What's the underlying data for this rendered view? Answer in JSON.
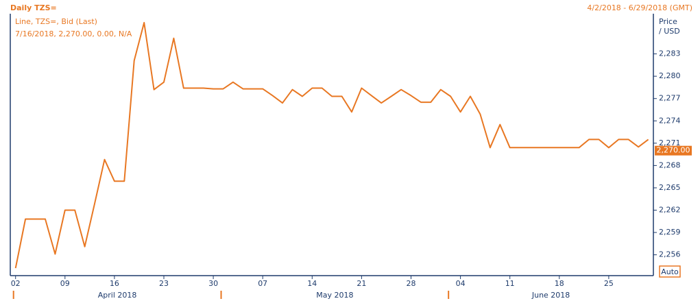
{
  "chart_data": {
    "type": "line",
    "title": "Daily TZS=",
    "date_range": "4/2/2018 - 6/29/2018 (GMT)",
    "series_description": "Line, TZS=, Bid (Last)",
    "last_quote": "7/16/2018, 2,270.00, 0.00, N/A",
    "y_label": [
      "Price",
      "/ USD"
    ],
    "scale_mode": "Auto",
    "current_price": {
      "value": 2270,
      "label": "2,270.00"
    },
    "categories": [
      "2018-04-02",
      "2018-04-03",
      "2018-04-04",
      "2018-04-05",
      "2018-04-06",
      "2018-04-09",
      "2018-04-10",
      "2018-04-11",
      "2018-04-12",
      "2018-04-13",
      "2018-04-16",
      "2018-04-17",
      "2018-04-18",
      "2018-04-19",
      "2018-04-20",
      "2018-04-23",
      "2018-04-24",
      "2018-04-25",
      "2018-04-26",
      "2018-04-27",
      "2018-04-30",
      "2018-05-01",
      "2018-05-02",
      "2018-05-03",
      "2018-05-04",
      "2018-05-07",
      "2018-05-08",
      "2018-05-09",
      "2018-05-10",
      "2018-05-11",
      "2018-05-14",
      "2018-05-15",
      "2018-05-16",
      "2018-05-17",
      "2018-05-18",
      "2018-05-21",
      "2018-05-22",
      "2018-05-23",
      "2018-05-24",
      "2018-05-25",
      "2018-05-28",
      "2018-05-29",
      "2018-05-30",
      "2018-05-31",
      "2018-06-01",
      "2018-06-04",
      "2018-06-05",
      "2018-06-06",
      "2018-06-07",
      "2018-06-08",
      "2018-06-11",
      "2018-06-12",
      "2018-06-13",
      "2018-06-14",
      "2018-06-15",
      "2018-06-18",
      "2018-06-19",
      "2018-06-20",
      "2018-06-21",
      "2018-06-22",
      "2018-06-25",
      "2018-06-26",
      "2018-06-27",
      "2018-06-28",
      "2018-06-29"
    ],
    "series": [
      {
        "name": "TZS=",
        "color": "#e87722",
        "values": [
          2254.2,
          2260.8,
          2260.8,
          2260.8,
          2256.1,
          2262.0,
          2262.0,
          2257.1,
          2262.9,
          2268.8,
          2265.9,
          2265.9,
          2282.1,
          2287.2,
          2278.2,
          2279.2,
          2285.1,
          2278.4,
          2278.4,
          2278.4,
          2278.3,
          2278.3,
          2279.2,
          2278.3,
          2278.3,
          2278.3,
          2277.4,
          2276.4,
          2278.2,
          2277.3,
          2278.4,
          2278.4,
          2277.3,
          2277.3,
          2275.2,
          2278.4,
          2277.4,
          2276.4,
          2277.3,
          2278.2,
          2277.4,
          2276.5,
          2276.5,
          2278.2,
          2277.3,
          2275.2,
          2277.3,
          2274.9,
          2270.4,
          2273.5,
          2270.4,
          2270.4,
          2270.4,
          2270.4,
          2270.4,
          2270.4,
          2270.4,
          2270.4,
          2271.5,
          2271.5,
          2270.4,
          2271.5,
          2271.5,
          2270.5,
          2271.5
        ]
      }
    ],
    "ylim": [
      2253.2,
      2288.4
    ],
    "yticks": [
      {
        "value": 2256,
        "label": "2,256"
      },
      {
        "value": 2259,
        "label": "2,259"
      },
      {
        "value": 2262,
        "label": "2,262"
      },
      {
        "value": 2265,
        "label": "2,265"
      },
      {
        "value": 2268,
        "label": "2,268"
      },
      {
        "value": 2271,
        "label": "2,271"
      },
      {
        "value": 2274,
        "label": "2,274"
      },
      {
        "value": 2277,
        "label": "2,277"
      },
      {
        "value": 2280,
        "label": "2,280"
      },
      {
        "value": 2283,
        "label": "2,283"
      }
    ],
    "xticks": [
      {
        "value": "2018-04-02",
        "label": "02"
      },
      {
        "value": "2018-04-09",
        "label": "09"
      },
      {
        "value": "2018-04-16",
        "label": "16"
      },
      {
        "value": "2018-04-23",
        "label": "23"
      },
      {
        "value": "2018-04-30",
        "label": "30"
      },
      {
        "value": "2018-05-07",
        "label": "07"
      },
      {
        "value": "2018-05-14",
        "label": "14"
      },
      {
        "value": "2018-05-21",
        "label": "21"
      },
      {
        "value": "2018-05-28",
        "label": "28"
      },
      {
        "value": "2018-06-04",
        "label": "04"
      },
      {
        "value": "2018-06-11",
        "label": "11"
      },
      {
        "value": "2018-06-18",
        "label": "18"
      },
      {
        "value": "2018-06-25",
        "label": "25"
      }
    ],
    "months": [
      {
        "label": "April 2018",
        "start": "2018-04-02"
      },
      {
        "label": "May 2018",
        "start": "2018-05-01"
      },
      {
        "label": "June 2018",
        "start": "2018-06-01"
      }
    ]
  }
}
